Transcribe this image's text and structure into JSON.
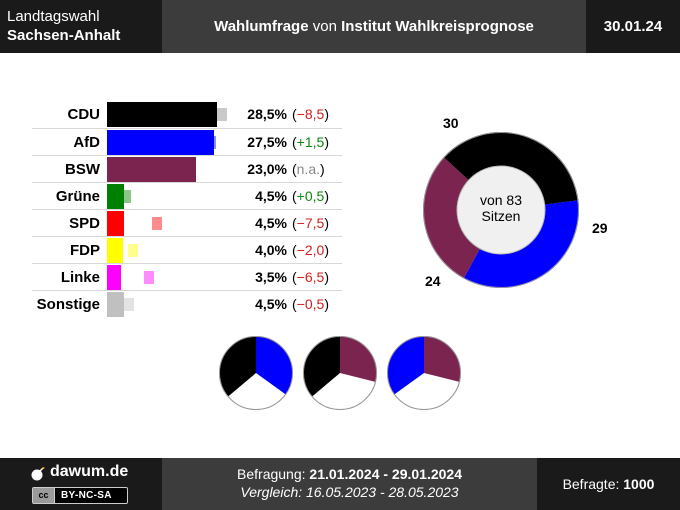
{
  "header": {
    "election_line1": "Landtagswahl",
    "election_line2": "Sachsen-Anhalt",
    "title_pre": "Wahlumfrage",
    "title_mid": " von ",
    "title_inst": "Institut Wahlkreisprognose",
    "date": "30.01.24"
  },
  "footer": {
    "brand": "dawum.de",
    "license": "BY-NC-SA",
    "cc_mark": "cc",
    "survey_label": "Befragung: ",
    "survey_period": "21.01.2024 - 29.01.2024",
    "compare_label": "Vergleich: ",
    "compare_period": "16.05.2023 - 28.05.2023",
    "respondents_label": "Befragte: ",
    "respondents": "1000"
  },
  "colors": {
    "CDU": "#000000",
    "AfD": "#0000ff",
    "BSW": "#7b2450",
    "Grüne": "#008000",
    "SPD": "#ff0000",
    "FDP": "#ffff00",
    "Linke": "#ff00ff",
    "Sonstige": "#c0c0c0"
  },
  "chart_data": [
    {
      "type": "bar",
      "categories": [
        "CDU",
        "AfD",
        "BSW",
        "Grüne",
        "SPD",
        "FDP",
        "Linke",
        "Sonstige"
      ],
      "values": [
        28.5,
        27.5,
        23.0,
        4.5,
        4.5,
        4.0,
        3.5,
        4.5
      ],
      "previous": [
        37.0,
        26.0,
        null,
        4.0,
        12.0,
        6.0,
        10.0,
        5.0
      ],
      "value_labels": [
        "28,5%",
        "27,5%",
        "23,0%",
        "4,5%",
        "4,5%",
        "4,0%",
        "3,5%",
        "4,5%"
      ],
      "change_labels": [
        "(−8,5)",
        "(+1,5)",
        "(n.a.)",
        "(+0,5)",
        "(−7,5)",
        "(−2,0)",
        "(−6,5)",
        "(−0,5)"
      ],
      "change_kind": [
        "neg",
        "pos",
        "na",
        "pos",
        "neg",
        "neg",
        "neg",
        "neg"
      ],
      "xlim": [
        0,
        30
      ]
    },
    {
      "type": "pie",
      "subtype": "donut",
      "categories": [
        "CDU",
        "AfD",
        "BSW"
      ],
      "values": [
        30,
        29,
        24
      ],
      "labels": [
        "30",
        "29",
        "24"
      ],
      "center_line1": "von 83",
      "center_line2": "Sitzen"
    },
    {
      "type": "pie",
      "description": "coalition majority pies",
      "total": 83,
      "pies": [
        {
          "parties": [
            "CDU",
            "AfD"
          ],
          "values": [
            30,
            29
          ]
        },
        {
          "parties": [
            "CDU",
            "BSW"
          ],
          "values": [
            30,
            24
          ]
        },
        {
          "parties": [
            "AfD",
            "BSW"
          ],
          "values": [
            29,
            24
          ]
        }
      ]
    }
  ]
}
